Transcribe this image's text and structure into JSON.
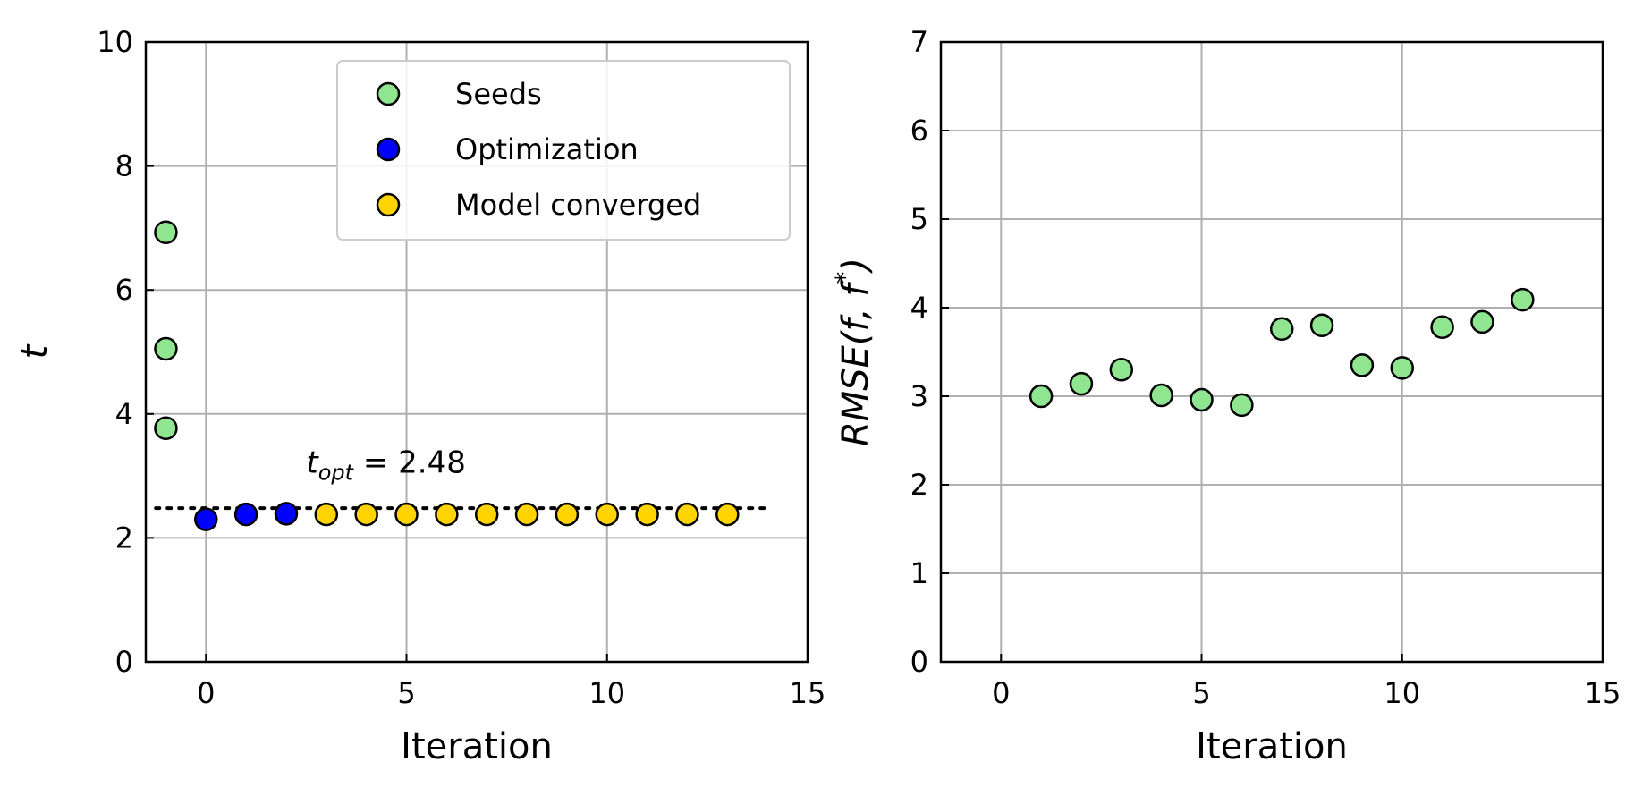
{
  "colors": {
    "seeds": "#90e690",
    "optimization": "#0000ff",
    "converged": "#ffd400",
    "grid": "#b0b0b0",
    "edge": "#000000"
  },
  "chart_data": [
    {
      "type": "scatter",
      "xlabel": "Iteration",
      "ylabel": "t",
      "xlim": [
        -1.5,
        15
      ],
      "ylim": [
        0,
        10
      ],
      "xticks": [
        0,
        5,
        10,
        15
      ],
      "yticks": [
        0,
        2,
        4,
        6,
        8,
        10
      ],
      "grid": true,
      "legend_position": "top-right",
      "series": [
        {
          "name": "Seeds",
          "color_key": "seeds",
          "points": [
            {
              "x": -1,
              "y": 6.93
            },
            {
              "x": -1,
              "y": 5.05
            },
            {
              "x": -1,
              "y": 3.77
            }
          ]
        },
        {
          "name": "Optimization",
          "color_key": "optimization",
          "points": [
            {
              "x": 0,
              "y": 2.3
            },
            {
              "x": 1,
              "y": 2.38
            },
            {
              "x": 2,
              "y": 2.39
            }
          ]
        },
        {
          "name": "Model converged",
          "color_key": "converged",
          "points": [
            {
              "x": 3,
              "y": 2.38
            },
            {
              "x": 4,
              "y": 2.38
            },
            {
              "x": 5,
              "y": 2.38
            },
            {
              "x": 6,
              "y": 2.38
            },
            {
              "x": 7,
              "y": 2.38
            },
            {
              "x": 8,
              "y": 2.38
            },
            {
              "x": 9,
              "y": 2.38
            },
            {
              "x": 10,
              "y": 2.38
            },
            {
              "x": 11,
              "y": 2.38
            },
            {
              "x": 12,
              "y": 2.38
            },
            {
              "x": 13,
              "y": 2.38
            }
          ]
        }
      ],
      "reference_line": {
        "y": 2.48,
        "x_range": [
          -1.25,
          14.1
        ],
        "style": "dotted"
      },
      "annotation": {
        "symbol": "t",
        "subscript": "opt",
        "text": " = 2.48",
        "x": 2.5,
        "y": 3.05
      }
    },
    {
      "type": "scatter",
      "xlabel": "Iteration",
      "ylabel": "RMSE(f, f*)",
      "ylabel_parts": {
        "main": "RMSE(f, f",
        "sup": "*",
        "close": ")"
      },
      "xlim": [
        -1.5,
        15
      ],
      "ylim": [
        0,
        7
      ],
      "xticks": [
        0,
        5,
        10,
        15
      ],
      "yticks": [
        0,
        1,
        2,
        3,
        4,
        5,
        6,
        7
      ],
      "grid": true,
      "series": [
        {
          "color_key": "seeds",
          "points": [
            {
              "x": 1,
              "y": 3.0
            },
            {
              "x": 2,
              "y": 3.14
            },
            {
              "x": 3,
              "y": 3.3
            },
            {
              "x": 4,
              "y": 3.01
            },
            {
              "x": 5,
              "y": 2.96
            },
            {
              "x": 6,
              "y": 2.9
            },
            {
              "x": 7,
              "y": 3.76
            },
            {
              "x": 8,
              "y": 3.8
            },
            {
              "x": 9,
              "y": 3.35
            },
            {
              "x": 10,
              "y": 3.32
            },
            {
              "x": 11,
              "y": 3.78
            },
            {
              "x": 12,
              "y": 3.84
            },
            {
              "x": 13,
              "y": 4.09
            }
          ]
        }
      ]
    }
  ]
}
